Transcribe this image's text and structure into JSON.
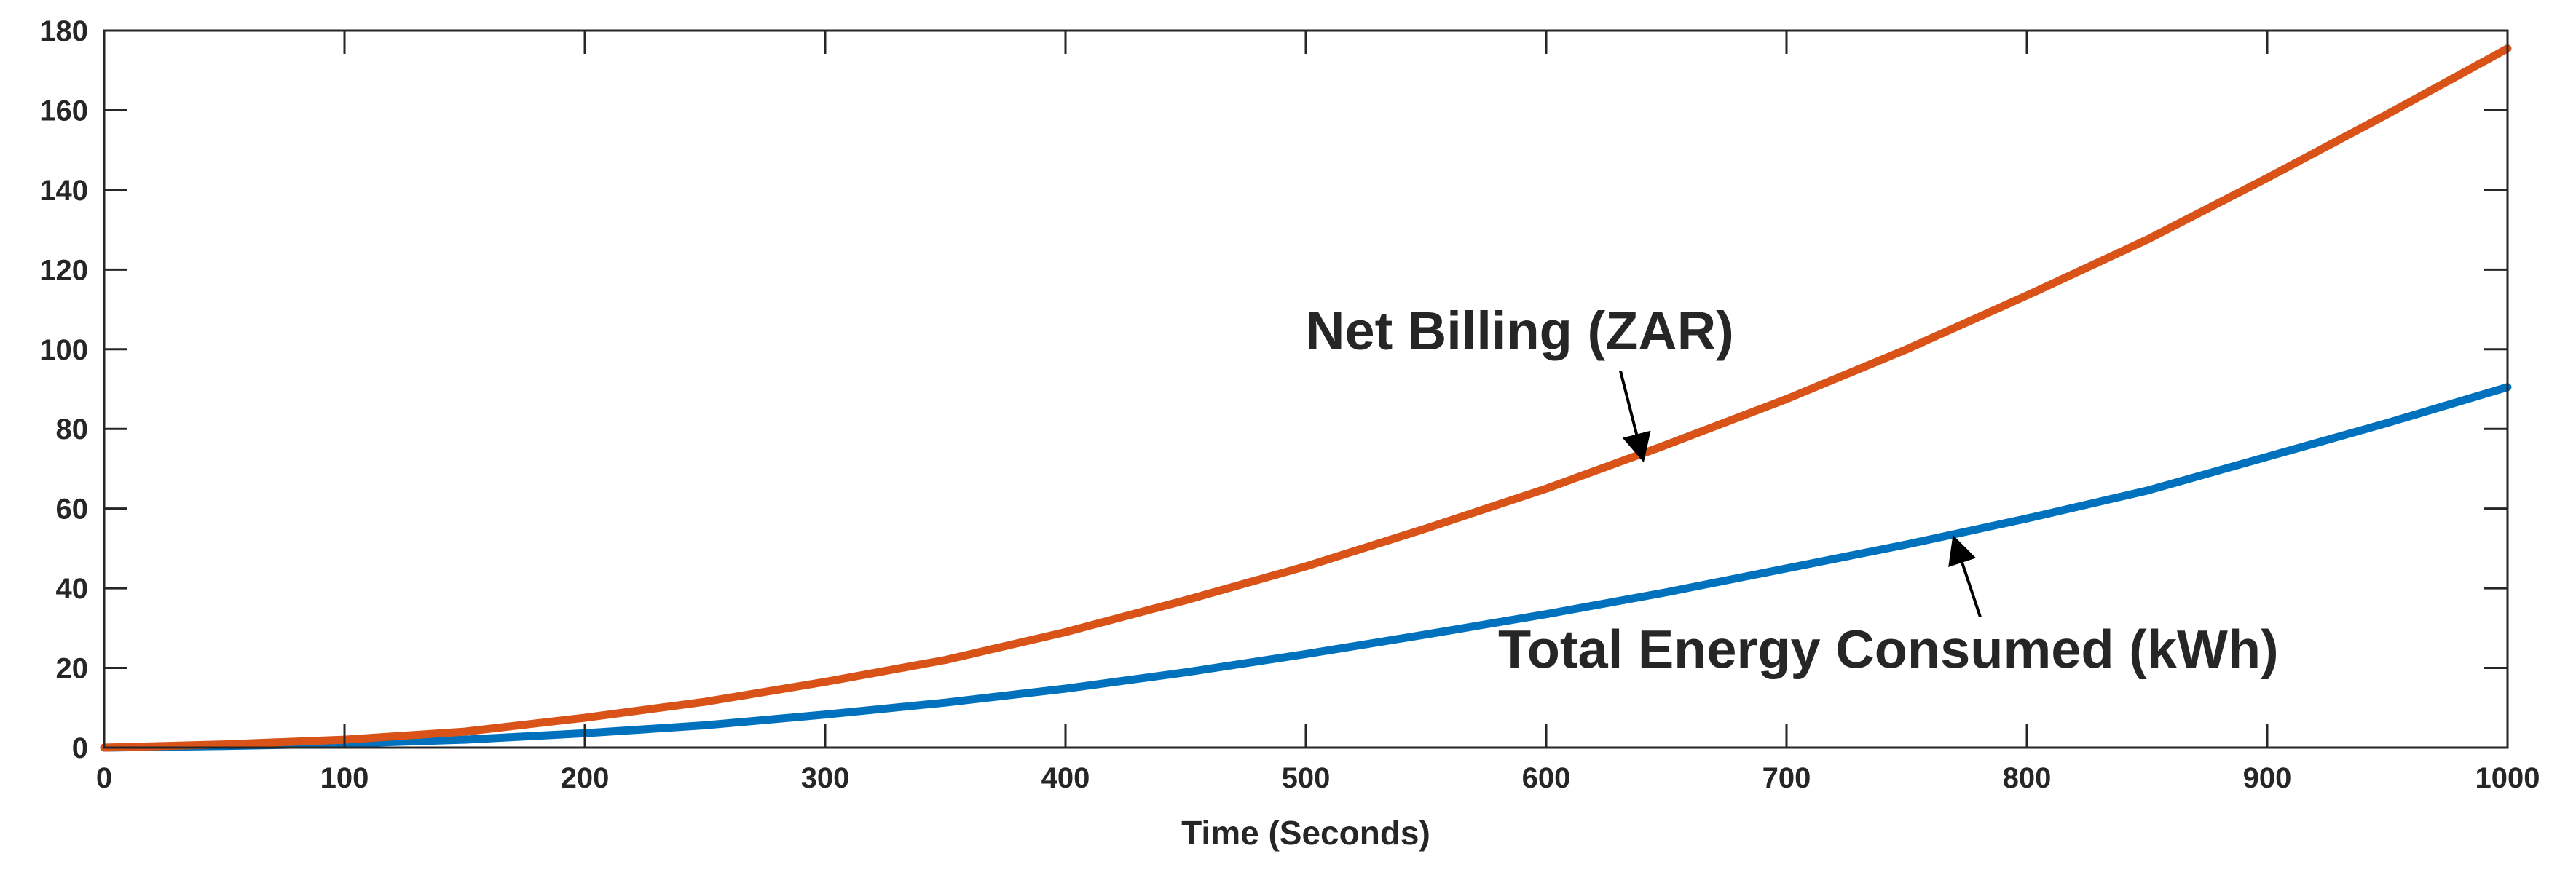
{
  "chart_data": {
    "type": "line",
    "title": "",
    "xlabel": "Time (Seconds)",
    "ylabel": "",
    "xlim": [
      0,
      1000
    ],
    "ylim": [
      0,
      180
    ],
    "xticks": [
      0,
      100,
      200,
      300,
      400,
      500,
      600,
      700,
      800,
      900,
      1000
    ],
    "yticks": [
      0,
      20,
      40,
      60,
      80,
      100,
      120,
      140,
      160,
      180
    ],
    "grid": false,
    "x": [
      0,
      50,
      100,
      150,
      200,
      250,
      300,
      350,
      400,
      450,
      500,
      550,
      600,
      650,
      700,
      750,
      800,
      850,
      900,
      950,
      1000
    ],
    "series": [
      {
        "name": "Net Billing (ZAR)",
        "color": "#d95319",
        "values": [
          0,
          0.8,
          2.0,
          4.0,
          7.5,
          11.5,
          16.5,
          22.0,
          29.0,
          37.0,
          45.5,
          55.0,
          65.0,
          76.0,
          87.5,
          100.0,
          113.5,
          127.5,
          143.0,
          159.0,
          175.5
        ]
      },
      {
        "name": "Total Energy Consumed (kWh)",
        "color": "#0072bd",
        "values": [
          0,
          0.4,
          1.0,
          2.0,
          3.6,
          5.6,
          8.3,
          11.3,
          14.8,
          18.9,
          23.5,
          28.4,
          33.5,
          39.0,
          45.0,
          51.0,
          57.5,
          64.5,
          73.0,
          81.5,
          90.5
        ]
      }
    ],
    "annotations": [
      {
        "text": "Net Billing (ZAR)",
        "series": 0,
        "label_at": [
          500,
          100
        ],
        "arrow_to": [
          640,
          73
        ]
      },
      {
        "text": "Total Energy Consumed (kWh)",
        "series": 1,
        "label_at": [
          580,
          20
        ],
        "arrow_to": [
          770,
          52
        ]
      }
    ]
  }
}
